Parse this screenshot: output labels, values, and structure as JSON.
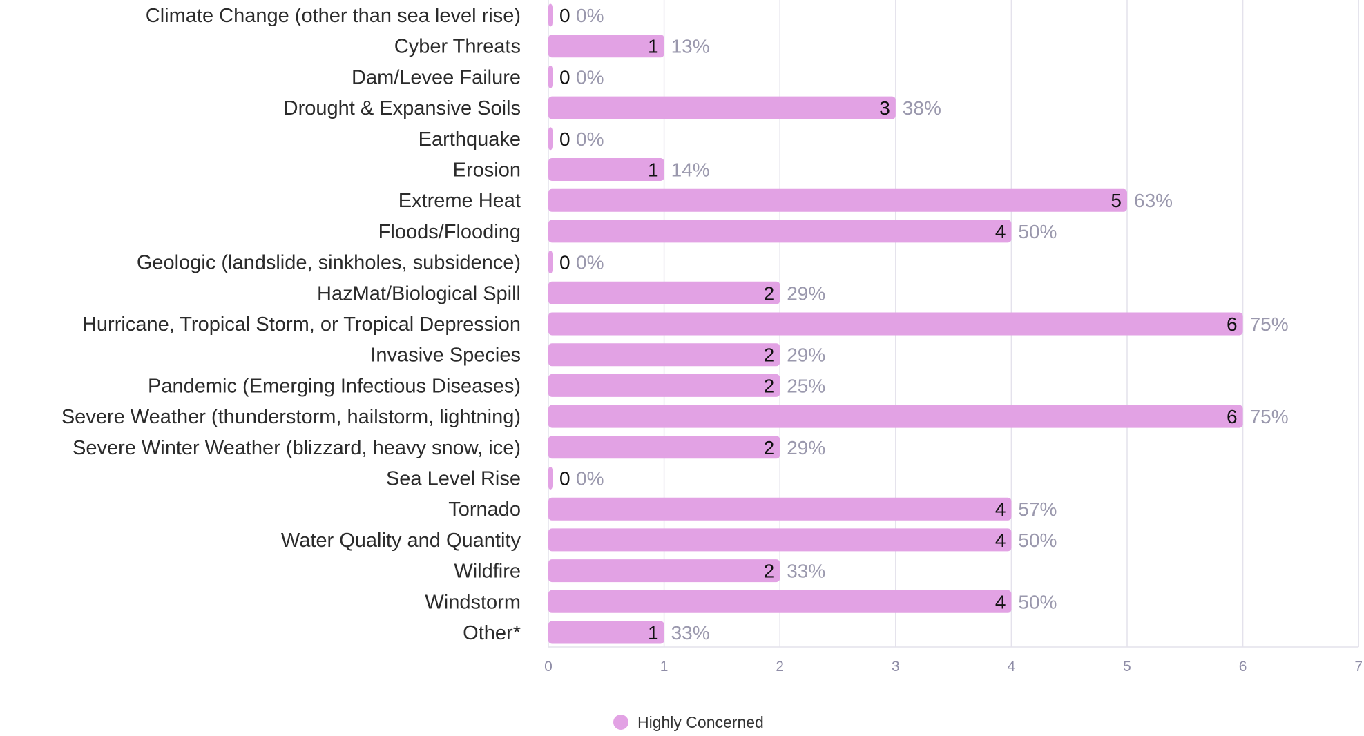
{
  "chart_data": {
    "type": "bar",
    "orientation": "horizontal",
    "categories": [
      "Climate Change (other than sea level rise)",
      "Cyber Threats",
      "Dam/Levee Failure",
      "Drought & Expansive Soils",
      "Earthquake",
      "Erosion",
      "Extreme Heat",
      "Floods/Flooding",
      "Geologic (landslide, sinkholes, subsidence)",
      "HazMat/Biological Spill",
      "Hurricane, Tropical Storm, or Tropical Depression",
      "Invasive Species",
      "Pandemic (Emerging Infectious Diseases)",
      "Severe Weather (thunderstorm, hailstorm, lightning)",
      "Severe Winter Weather (blizzard, heavy snow, ice)",
      "Sea Level Rise",
      "Tornado",
      "Water Quality and Quantity",
      "Wildfire",
      "Windstorm",
      "Other*"
    ],
    "series": [
      {
        "name": "Highly Concerned",
        "color": "#e2a2e4",
        "values": [
          0,
          1,
          0,
          3,
          0,
          1,
          5,
          4,
          0,
          2,
          6,
          2,
          2,
          6,
          2,
          0,
          4,
          4,
          2,
          4,
          1
        ],
        "percent_labels": [
          "0%",
          "13%",
          "0%",
          "38%",
          "0%",
          "14%",
          "63%",
          "50%",
          "0%",
          "29%",
          "75%",
          "29%",
          "25%",
          "75%",
          "29%",
          "0%",
          "57%",
          "50%",
          "33%",
          "50%",
          "33%"
        ]
      }
    ],
    "xlim": [
      0,
      7
    ],
    "x_ticks": [
      "0",
      "1",
      "2",
      "3",
      "4",
      "5",
      "6",
      "7"
    ],
    "grid": "vertical",
    "legend": "bottom-center",
    "title": "",
    "xlabel": "",
    "ylabel": ""
  },
  "colors": {
    "bar": "#e2a2e4",
    "grid": "#e4e2ec",
    "category_text": "#2b2b2b",
    "value_text": "#111111",
    "percent_text": "#9a98ad",
    "tick_text": "#8e8ca6"
  }
}
